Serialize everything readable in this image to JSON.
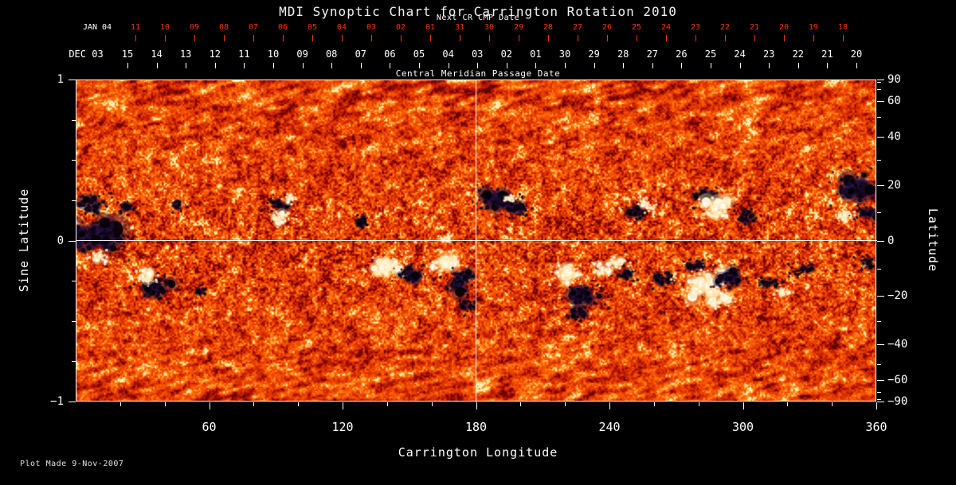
{
  "title": "MDI Synoptic Chart for Carrington Rotation 2010",
  "colors": {
    "background": "#000000",
    "accent_red": "#ff3200",
    "white": "#ffffff"
  },
  "top_axis_red": {
    "label": "Next CR CMP Date",
    "month_label": "JAN 04",
    "ticks": [
      "11",
      "10",
      "09",
      "08",
      "07",
      "06",
      "05",
      "04",
      "03",
      "02",
      "01",
      "31",
      "30",
      "29",
      "28",
      "27",
      "26",
      "25",
      "24",
      "23",
      "22",
      "21",
      "20",
      "19",
      "18"
    ]
  },
  "top_axis_white": {
    "label": "Central Meridian Passage Date",
    "month_label": "DEC 03",
    "ticks": [
      "15",
      "14",
      "13",
      "12",
      "11",
      "10",
      "09",
      "08",
      "07",
      "06",
      "05",
      "04",
      "03",
      "02",
      "01",
      "30",
      "29",
      "28",
      "27",
      "26",
      "25",
      "24",
      "23",
      "22",
      "21",
      "20"
    ]
  },
  "left_axis": {
    "label": "Sine Latitude",
    "ticks": [
      {
        "label": "1",
        "value": 1
      },
      {
        "label": "0",
        "value": 0
      },
      {
        "label": "−1",
        "value": -1
      }
    ],
    "minor_values": [
      0.75,
      0.5,
      0.25,
      -0.25,
      -0.5,
      -0.75
    ]
  },
  "right_axis": {
    "label": "Latitude",
    "ticks": [
      {
        "label": "90",
        "value": 90
      },
      {
        "label": "60",
        "value": 60
      },
      {
        "label": "40",
        "value": 40
      },
      {
        "label": "20",
        "value": 20
      },
      {
        "label": "0",
        "value": 0
      },
      {
        "label": "−20",
        "value": -20
      },
      {
        "label": "−40",
        "value": -40
      },
      {
        "label": "−60",
        "value": -60
      },
      {
        "label": "−90",
        "value": -90
      }
    ],
    "minor_values": [
      80,
      70,
      50,
      30,
      10,
      -10,
      -30,
      -50,
      -70,
      -80
    ]
  },
  "bottom_axis": {
    "label": "Carrington Longitude",
    "major_ticks": [
      60,
      120,
      180,
      240,
      300,
      360
    ],
    "minor_ticks": [
      20,
      40,
      80,
      100,
      140,
      160,
      200,
      220,
      260,
      280,
      320,
      340
    ]
  },
  "footer": {
    "plot_made": "Plot Made  9-Nov-2007"
  },
  "chart_data": {
    "type": "heatmap",
    "title": "MDI Synoptic Chart for Carrington Rotation 2010",
    "description": "Full-rotation synoptic magnetogram of the solar photosphere. Orange-red granular background is weak mixed field; black patches are strong negative-polarity active regions, white/pale-yellow patches are strong positive-polarity active regions. White crosshair grid lines mark Carrington longitude 180 and sine latitude 0.",
    "x_axis": {
      "label": "Carrington Longitude",
      "range": [
        0,
        360
      ],
      "major_ticks": [
        60,
        120,
        180,
        240,
        300,
        360
      ]
    },
    "y_axis": {
      "label": "Sine Latitude",
      "range": [
        -1,
        1
      ],
      "ticks": [
        1,
        0,
        -1
      ]
    },
    "y_axis_secondary": {
      "label": "Latitude",
      "ticks": [
        90,
        60,
        40,
        20,
        0,
        -20,
        -40,
        -60,
        -90
      ],
      "scale": "sine"
    },
    "top_axis_dates": {
      "current_rotation": {
        "month": "DEC 03",
        "days": [
          "15",
          "14",
          "13",
          "12",
          "11",
          "10",
          "09",
          "08",
          "07",
          "06",
          "05",
          "04",
          "03",
          "02",
          "01",
          "30",
          "29",
          "28",
          "27",
          "26",
          "25",
          "24",
          "23",
          "22",
          "21",
          "20"
        ]
      },
      "next_rotation": {
        "month": "JAN 04",
        "days": [
          "11",
          "10",
          "09",
          "08",
          "07",
          "06",
          "05",
          "04",
          "03",
          "02",
          "01",
          "31",
          "30",
          "29",
          "28",
          "27",
          "26",
          "25",
          "24",
          "23",
          "22",
          "21",
          "20",
          "19",
          "18"
        ]
      }
    },
    "grid_lines": {
      "vertical_longitude": 180,
      "horizontal_sine_latitude": 0
    },
    "palette": "granular orange-red base, dark-red speckles, pale-yellow highlights; streaky texture toward poles",
    "active_regions": [
      {
        "lon": 8,
        "sin_lat": 0.02,
        "polarity": "negative",
        "size": 24
      },
      {
        "lon": 7,
        "sin_lat": 0.22,
        "polarity": "negative",
        "size": 13
      },
      {
        "lon": 11,
        "sin_lat": -0.1,
        "polarity": "positive",
        "size": 8
      },
      {
        "lon": 23,
        "sin_lat": 0.2,
        "polarity": "negative",
        "size": 8
      },
      {
        "lon": 36,
        "sin_lat": -0.29,
        "polarity": "negative",
        "size": 16
      },
      {
        "lon": 31,
        "sin_lat": -0.22,
        "polarity": "positive",
        "size": 10
      },
      {
        "lon": 46,
        "sin_lat": 0.22,
        "polarity": "negative",
        "size": 7
      },
      {
        "lon": 56,
        "sin_lat": -0.32,
        "polarity": "negative",
        "size": 7
      },
      {
        "lon": 91,
        "sin_lat": 0.22,
        "polarity": "negative",
        "size": 12
      },
      {
        "lon": 92,
        "sin_lat": 0.14,
        "polarity": "positive",
        "size": 9
      },
      {
        "lon": 97,
        "sin_lat": 0.26,
        "polarity": "positive",
        "size": 6
      },
      {
        "lon": 129,
        "sin_lat": 0.12,
        "polarity": "negative",
        "size": 8
      },
      {
        "lon": 141,
        "sin_lat": -0.16,
        "polarity": "positive",
        "size": 15
      },
      {
        "lon": 150,
        "sin_lat": -0.21,
        "polarity": "negative",
        "size": 12
      },
      {
        "lon": 166,
        "sin_lat": -0.14,
        "polarity": "positive",
        "size": 14
      },
      {
        "lon": 172,
        "sin_lat": -0.26,
        "polarity": "negative",
        "size": 15
      },
      {
        "lon": 176,
        "sin_lat": -0.41,
        "polarity": "negative",
        "size": 9
      },
      {
        "lon": 166,
        "sin_lat": 0.01,
        "polarity": "positive",
        "size": 5
      },
      {
        "lon": 188,
        "sin_lat": 0.26,
        "polarity": "negative",
        "size": 16
      },
      {
        "lon": 198,
        "sin_lat": 0.2,
        "polarity": "negative",
        "size": 11
      },
      {
        "lon": 195,
        "sin_lat": 0.26,
        "polarity": "positive",
        "size": 5
      },
      {
        "lon": 221,
        "sin_lat": -0.21,
        "polarity": "positive",
        "size": 13
      },
      {
        "lon": 229,
        "sin_lat": -0.33,
        "polarity": "negative",
        "size": 16
      },
      {
        "lon": 226,
        "sin_lat": -0.46,
        "polarity": "negative",
        "size": 9
      },
      {
        "lon": 236,
        "sin_lat": -0.18,
        "polarity": "positive",
        "size": 10
      },
      {
        "lon": 244,
        "sin_lat": -0.14,
        "polarity": "positive",
        "size": 9
      },
      {
        "lon": 248,
        "sin_lat": -0.21,
        "polarity": "negative",
        "size": 8
      },
      {
        "lon": 253,
        "sin_lat": 0.17,
        "polarity": "negative",
        "size": 10
      },
      {
        "lon": 258,
        "sin_lat": 0.22,
        "polarity": "positive",
        "size": 9
      },
      {
        "lon": 264,
        "sin_lat": -0.24,
        "polarity": "negative",
        "size": 10
      },
      {
        "lon": 278,
        "sin_lat": -0.15,
        "polarity": "negative",
        "size": 9
      },
      {
        "lon": 283,
        "sin_lat": -0.28,
        "polarity": "positive",
        "size": 20
      },
      {
        "lon": 290,
        "sin_lat": -0.37,
        "polarity": "positive",
        "size": 11
      },
      {
        "lon": 294,
        "sin_lat": -0.24,
        "polarity": "negative",
        "size": 13
      },
      {
        "lon": 283,
        "sin_lat": 0.27,
        "polarity": "negative",
        "size": 11
      },
      {
        "lon": 288,
        "sin_lat": 0.2,
        "polarity": "positive",
        "size": 15
      },
      {
        "lon": 302,
        "sin_lat": 0.15,
        "polarity": "negative",
        "size": 9
      },
      {
        "lon": 312,
        "sin_lat": -0.26,
        "polarity": "negative",
        "size": 8
      },
      {
        "lon": 319,
        "sin_lat": -0.32,
        "polarity": "positive",
        "size": 7
      },
      {
        "lon": 328,
        "sin_lat": -0.18,
        "polarity": "negative",
        "size": 9
      },
      {
        "lon": 346,
        "sin_lat": 0.16,
        "polarity": "positive",
        "size": 7
      },
      {
        "lon": 351,
        "sin_lat": 0.33,
        "polarity": "negative",
        "size": 20
      },
      {
        "lon": 356,
        "sin_lat": 0.17,
        "polarity": "negative",
        "size": 10
      },
      {
        "lon": 356,
        "sin_lat": -0.14,
        "polarity": "negative",
        "size": 8
      }
    ]
  }
}
